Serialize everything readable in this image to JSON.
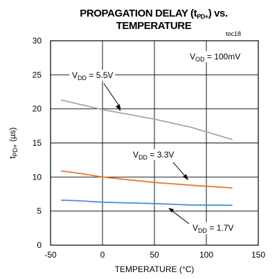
{
  "chart_data": {
    "type": "line",
    "title_line1": "PROPAGATION DELAY (t",
    "title_line1_sub": "PD+",
    "title_line1_end": ") vs.",
    "title_line2": "TEMPERATURE",
    "figure_id": "toc18",
    "xlabel": "TEMPERATURE (°C)",
    "ylabel_main": "t",
    "ylabel_sub": "PD+",
    "ylabel_end": " (µs)",
    "xlim": [
      -50,
      150
    ],
    "ylim": [
      0,
      30
    ],
    "xticks": [
      -50,
      0,
      50,
      100,
      150
    ],
    "yticks": [
      0,
      5,
      10,
      15,
      20,
      25,
      30
    ],
    "grid": true,
    "condition": {
      "main": "V",
      "sub": "OD",
      "end": " = 100mV"
    },
    "series": [
      {
        "name_main": "V",
        "name_sub": "DD",
        "name_end": " = 5.5V",
        "color": "#a6a6a6",
        "x": [
          -40,
          -20,
          0,
          25,
          50,
          85,
          125
        ],
        "y": [
          21.3,
          20.6,
          19.9,
          19.2,
          18.5,
          17.3,
          15.5
        ]
      },
      {
        "name_main": "V",
        "name_sub": "DD",
        "name_end": " = 3.3V",
        "color": "#e8782a",
        "x": [
          -40,
          -20,
          0,
          25,
          50,
          85,
          125
        ],
        "y": [
          10.9,
          10.5,
          10.0,
          9.6,
          9.2,
          8.8,
          8.4
        ]
      },
      {
        "name_main": "V",
        "name_sub": "DD",
        "name_end": " = 1.7V",
        "color": "#4a90d9",
        "x": [
          -40,
          -20,
          0,
          25,
          50,
          85,
          125
        ],
        "y": [
          6.6,
          6.5,
          6.3,
          6.2,
          6.1,
          5.9,
          5.85
        ]
      }
    ]
  }
}
